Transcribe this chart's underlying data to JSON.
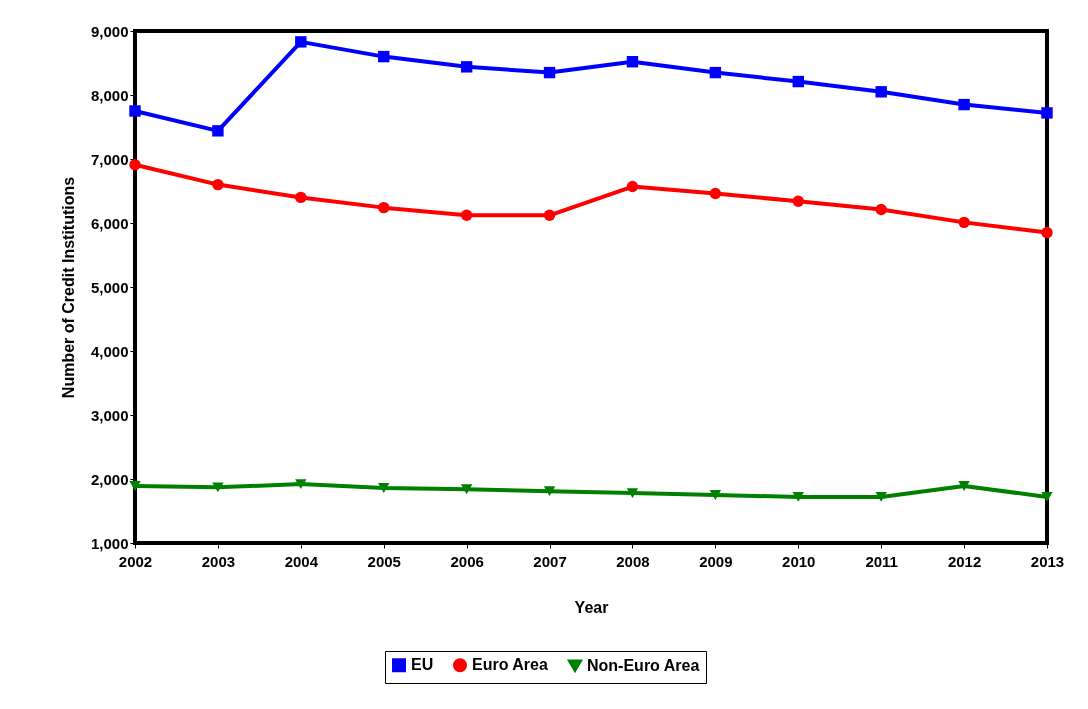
{
  "chart_data": {
    "type": "line",
    "xlabel": "Year",
    "ylabel": "Number of Credit Institutions",
    "x": [
      2002,
      2003,
      2004,
      2005,
      2006,
      2007,
      2008,
      2009,
      2010,
      2011,
      2012,
      2013
    ],
    "xlim": [
      2002,
      2013
    ],
    "xticks": [
      2002,
      2003,
      2004,
      2005,
      2006,
      2007,
      2008,
      2009,
      2010,
      2011,
      2012,
      2013
    ],
    "ylim": [
      1000,
      9000
    ],
    "yticks": [
      {
        "value": 1000,
        "label": "1,000"
      },
      {
        "value": 2000,
        "label": "2,000"
      },
      {
        "value": 3000,
        "label": "3,000"
      },
      {
        "value": 4000,
        "label": "4,000"
      },
      {
        "value": 5000,
        "label": "5,000"
      },
      {
        "value": 6000,
        "label": "6,000"
      },
      {
        "value": 7000,
        "label": "7,000"
      },
      {
        "value": 8000,
        "label": "8,000"
      },
      {
        "value": 9000,
        "label": "9,000"
      }
    ],
    "grid": false,
    "legend": "bottom",
    "line_style": "solid",
    "series": [
      {
        "name": "EU",
        "color": "#0000ff",
        "marker": "square",
        "values": [
          7750,
          7440,
          8830,
          8600,
          8440,
          8350,
          8520,
          8350,
          8210,
          8050,
          7850,
          7720
        ]
      },
      {
        "name": "Euro Area",
        "color": "#ff0000",
        "marker": "circle",
        "values": [
          6910,
          6600,
          6400,
          6240,
          6120,
          6120,
          6570,
          6460,
          6340,
          6210,
          6010,
          5850
        ]
      },
      {
        "name": "Non-Euro Area",
        "color": "#008000",
        "marker": "triangle-down",
        "values": [
          1890,
          1870,
          1920,
          1860,
          1840,
          1810,
          1780,
          1750,
          1720,
          1720,
          1890,
          1720
        ]
      }
    ]
  }
}
